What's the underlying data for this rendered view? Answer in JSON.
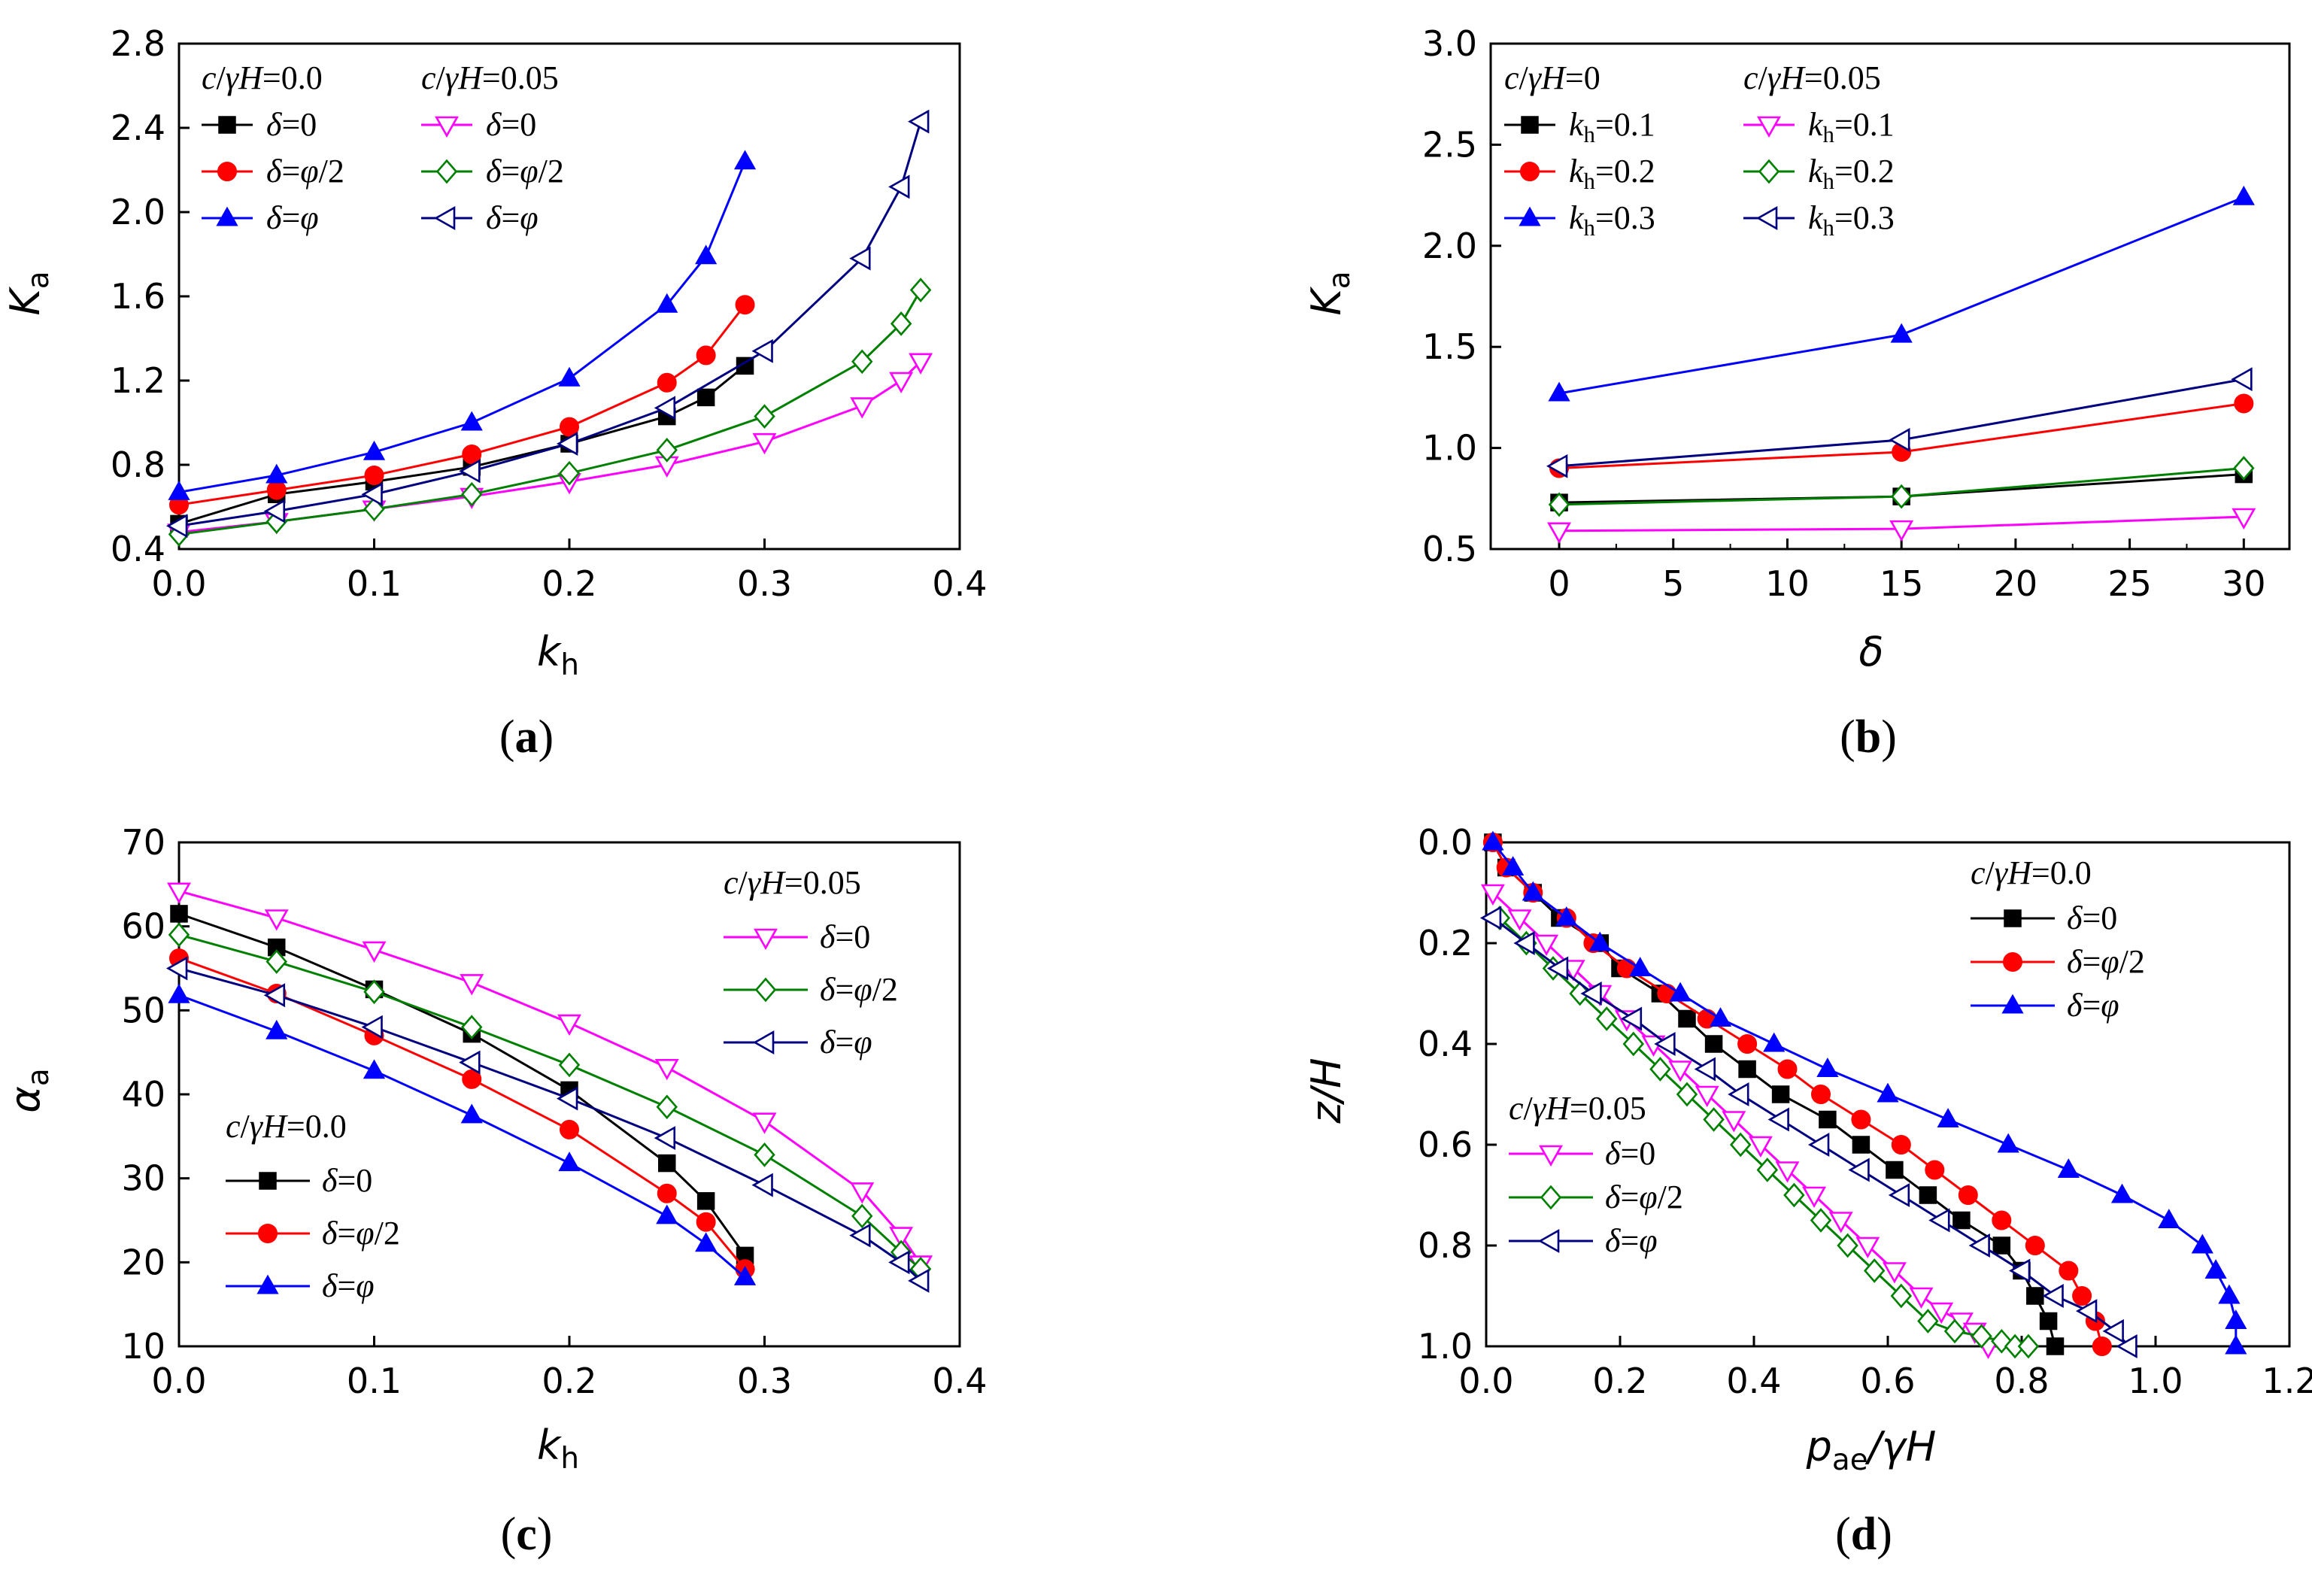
{
  "colors": {
    "black": "#000000",
    "red": "#ff0000",
    "blue": "#0000ff",
    "magenta": "#ff00ff",
    "green": "#008000",
    "navy": "#000080"
  },
  "chart_data": [
    {
      "panel": "a",
      "caption": "(a)",
      "type": "line",
      "xlabel": "k_h",
      "ylabel": "K_a",
      "xlim": [
        0,
        0.4
      ],
      "ylim": [
        0.4,
        2.8
      ],
      "xticks": [
        "0.0",
        "0.1",
        "0.2",
        "0.3",
        "0.4"
      ],
      "yticks": [
        "0.4",
        "0.8",
        "1.2",
        "1.6",
        "2.0",
        "2.4",
        "2.8"
      ],
      "legend_groups": [
        "c/γH=0.0",
        "c/γH=0.05"
      ],
      "legend_position": "top-left",
      "series": [
        {
          "name": "δ=0",
          "group": "c/γH=0.0",
          "color": "black",
          "marker": "square",
          "filled": true,
          "x": [
            0,
            0.05,
            0.1,
            0.15,
            0.2,
            0.25,
            0.27,
            0.29
          ],
          "y": [
            0.52,
            0.66,
            0.72,
            0.79,
            0.9,
            1.03,
            1.12,
            1.27
          ]
        },
        {
          "name": "δ=φ/2",
          "group": "c/γH=0.0",
          "color": "red",
          "marker": "circle",
          "filled": true,
          "x": [
            0,
            0.05,
            0.1,
            0.15,
            0.2,
            0.25,
            0.27,
            0.29
          ],
          "y": [
            0.61,
            0.68,
            0.75,
            0.85,
            0.98,
            1.19,
            1.32,
            1.56
          ]
        },
        {
          "name": "δ=φ",
          "group": "c/γH=0.0",
          "color": "blue",
          "marker": "triangle-up",
          "filled": true,
          "x": [
            0,
            0.05,
            0.1,
            0.15,
            0.2,
            0.25,
            0.27,
            0.29
          ],
          "y": [
            0.67,
            0.75,
            0.86,
            1.0,
            1.21,
            1.56,
            1.79,
            2.24
          ]
        },
        {
          "name": "δ=0",
          "group": "c/γH=0.05",
          "color": "magenta",
          "marker": "triangle-down",
          "filled": false,
          "x": [
            0,
            0.05,
            0.1,
            0.15,
            0.2,
            0.25,
            0.3,
            0.35,
            0.37,
            0.38
          ],
          "y": [
            0.48,
            0.53,
            0.59,
            0.65,
            0.72,
            0.8,
            0.91,
            1.08,
            1.2,
            1.29
          ]
        },
        {
          "name": "δ=φ/2",
          "group": "c/γH=0.05",
          "color": "green",
          "marker": "diamond",
          "filled": false,
          "x": [
            0,
            0.05,
            0.1,
            0.15,
            0.2,
            0.25,
            0.3,
            0.35,
            0.37,
            0.38
          ],
          "y": [
            0.47,
            0.53,
            0.59,
            0.66,
            0.76,
            0.87,
            1.03,
            1.29,
            1.47,
            1.63
          ]
        },
        {
          "name": "δ=φ",
          "group": "c/γH=0.05",
          "color": "navy",
          "marker": "triangle-left",
          "filled": false,
          "x": [
            0,
            0.05,
            0.1,
            0.15,
            0.2,
            0.25,
            0.3,
            0.35,
            0.37,
            0.38
          ],
          "y": [
            0.51,
            0.58,
            0.66,
            0.77,
            0.9,
            1.07,
            1.34,
            1.78,
            2.12,
            2.43
          ]
        }
      ]
    },
    {
      "panel": "b",
      "caption": "(b)",
      "type": "line",
      "xlabel": "δ",
      "ylabel": "K_a",
      "xlim": [
        -3,
        32
      ],
      "ylim": [
        0.5,
        3.0
      ],
      "xticks": [
        "0",
        "5",
        "10",
        "15",
        "20",
        "25",
        "30"
      ],
      "yticks": [
        "0.5",
        "1.0",
        "1.5",
        "2.0",
        "2.5",
        "3.0"
      ],
      "legend_groups": [
        "c/γH=0",
        "c/γH=0.05"
      ],
      "legend_position": "top-left",
      "series": [
        {
          "name": "kh=0.1",
          "group": "c/γH=0",
          "color": "black",
          "marker": "square",
          "filled": true,
          "x": [
            0,
            15,
            30
          ],
          "y": [
            0.73,
            0.76,
            0.87
          ]
        },
        {
          "name": "kh=0.2",
          "group": "c/γH=0",
          "color": "red",
          "marker": "circle",
          "filled": true,
          "x": [
            0,
            15,
            30
          ],
          "y": [
            0.9,
            0.98,
            1.22
          ]
        },
        {
          "name": "kh=0.3",
          "group": "c/γH=0",
          "color": "blue",
          "marker": "triangle-up",
          "filled": true,
          "x": [
            0,
            15,
            30
          ],
          "y": [
            1.27,
            1.56,
            2.24
          ]
        },
        {
          "name": "kh=0.1",
          "group": "c/γH=0.05",
          "color": "magenta",
          "marker": "triangle-down",
          "filled": false,
          "x": [
            0,
            15,
            30
          ],
          "y": [
            0.59,
            0.6,
            0.66
          ]
        },
        {
          "name": "kh=0.2",
          "group": "c/γH=0.05",
          "color": "green",
          "marker": "diamond",
          "filled": false,
          "x": [
            0,
            15,
            30
          ],
          "y": [
            0.72,
            0.76,
            0.9
          ]
        },
        {
          "name": "kh=0.3",
          "group": "c/γH=0.05",
          "color": "navy",
          "marker": "triangle-left",
          "filled": false,
          "x": [
            0,
            15,
            30
          ],
          "y": [
            0.91,
            1.04,
            1.34
          ]
        }
      ]
    },
    {
      "panel": "c",
      "caption": "(c)",
      "type": "line",
      "xlabel": "k_h",
      "ylabel": "α_a",
      "xlim": [
        0,
        0.4
      ],
      "ylim": [
        10,
        70
      ],
      "xticks": [
        "0.0",
        "0.1",
        "0.2",
        "0.3",
        "0.4"
      ],
      "yticks": [
        "10",
        "20",
        "30",
        "40",
        "50",
        "60",
        "70"
      ],
      "legend_groups": [
        "c/γH=0.05",
        "c/γH=0.0"
      ],
      "legend_position": "top-right and bottom-left",
      "series": [
        {
          "name": "δ=0",
          "group": "c/γH=0.0",
          "color": "black",
          "marker": "square",
          "filled": true,
          "x": [
            0,
            0.05,
            0.1,
            0.15,
            0.2,
            0.25,
            0.27,
            0.29
          ],
          "y": [
            61.5,
            57.5,
            52.5,
            47.2,
            40.5,
            31.8,
            27.3,
            20.8
          ]
        },
        {
          "name": "δ=φ/2",
          "group": "c/γH=0.0",
          "color": "red",
          "marker": "circle",
          "filled": true,
          "x": [
            0,
            0.05,
            0.1,
            0.15,
            0.2,
            0.25,
            0.27,
            0.29
          ],
          "y": [
            56.2,
            52.0,
            47.0,
            41.8,
            35.8,
            28.2,
            24.8,
            19.2
          ]
        },
        {
          "name": "δ=φ",
          "group": "c/γH=0.0",
          "color": "blue",
          "marker": "triangle-up",
          "filled": true,
          "x": [
            0,
            0.05,
            0.1,
            0.15,
            0.2,
            0.25,
            0.27,
            0.29
          ],
          "y": [
            51.8,
            47.5,
            42.8,
            37.5,
            31.8,
            25.5,
            22.2,
            18.2
          ]
        },
        {
          "name": "δ=0",
          "group": "c/γH=0.05",
          "color": "magenta",
          "marker": "triangle-down",
          "filled": false,
          "x": [
            0,
            0.05,
            0.1,
            0.15,
            0.2,
            0.25,
            0.3,
            0.35,
            0.37,
            0.38
          ],
          "y": [
            64.2,
            61.0,
            57.2,
            53.3,
            48.5,
            43.2,
            36.8,
            28.5,
            23.2,
            19.8
          ]
        },
        {
          "name": "δ=φ/2",
          "group": "c/γH=0.05",
          "color": "green",
          "marker": "diamond",
          "filled": false,
          "x": [
            0,
            0.05,
            0.1,
            0.15,
            0.2,
            0.25,
            0.3,
            0.35,
            0.37,
            0.38
          ],
          "y": [
            59.0,
            55.8,
            52.2,
            48.0,
            43.5,
            38.5,
            32.8,
            25.5,
            21.2,
            19.2
          ]
        },
        {
          "name": "δ=φ",
          "group": "c/γH=0.05",
          "color": "navy",
          "marker": "triangle-left",
          "filled": false,
          "x": [
            0,
            0.05,
            0.1,
            0.15,
            0.2,
            0.25,
            0.3,
            0.35,
            0.37,
            0.38
          ],
          "y": [
            55.0,
            51.8,
            48.0,
            43.8,
            39.5,
            34.8,
            29.2,
            23.2,
            20.0,
            17.8
          ]
        }
      ]
    },
    {
      "panel": "d",
      "caption": "(d)",
      "type": "line",
      "xlabel": "p_ae/γH",
      "ylabel": "z/H",
      "xlim": [
        0,
        1.2
      ],
      "ylim": [
        1.0,
        0.0
      ],
      "y_inverted": true,
      "xticks": [
        "0.0",
        "0.2",
        "0.4",
        "0.6",
        "0.8",
        "1.0",
        "1.2"
      ],
      "yticks": [
        "0.0",
        "0.2",
        "0.4",
        "0.6",
        "0.8",
        "1.0"
      ],
      "legend_groups": [
        "c/γH=0.0",
        "c/γH=0.05"
      ],
      "legend_position": "top-right and center-left",
      "series": [
        {
          "name": "δ=0",
          "group": "c/γH=0.0",
          "color": "black",
          "marker": "square",
          "filled": true,
          "x": [
            0.01,
            0.03,
            0.07,
            0.11,
            0.17,
            0.2,
            0.26,
            0.3,
            0.34,
            0.39,
            0.44,
            0.51,
            0.56,
            0.61,
            0.66,
            0.71,
            0.77,
            0.8,
            0.82,
            0.84,
            0.85
          ],
          "y": [
            0.0,
            0.05,
            0.1,
            0.15,
            0.2,
            0.25,
            0.3,
            0.35,
            0.4,
            0.45,
            0.5,
            0.55,
            0.6,
            0.65,
            0.7,
            0.75,
            0.8,
            0.85,
            0.9,
            0.95,
            1.0
          ]
        },
        {
          "name": "δ=φ/2",
          "group": "c/γH=0.0",
          "color": "red",
          "marker": "circle",
          "filled": true,
          "x": [
            0.01,
            0.03,
            0.07,
            0.12,
            0.16,
            0.21,
            0.27,
            0.33,
            0.39,
            0.45,
            0.5,
            0.56,
            0.62,
            0.67,
            0.72,
            0.77,
            0.82,
            0.87,
            0.89,
            0.91,
            0.92
          ],
          "y": [
            0.0,
            0.05,
            0.1,
            0.15,
            0.2,
            0.25,
            0.3,
            0.35,
            0.4,
            0.45,
            0.5,
            0.55,
            0.6,
            0.65,
            0.7,
            0.75,
            0.8,
            0.85,
            0.9,
            0.95,
            1.0
          ]
        },
        {
          "name": "δ=φ",
          "group": "c/γH=0.0",
          "color": "blue",
          "marker": "triangle-up",
          "filled": true,
          "x": [
            0.01,
            0.04,
            0.07,
            0.12,
            0.17,
            0.23,
            0.29,
            0.35,
            0.43,
            0.51,
            0.6,
            0.69,
            0.78,
            0.87,
            0.95,
            1.02,
            1.07,
            1.09,
            1.11,
            1.12,
            1.12
          ],
          "y": [
            0.0,
            0.05,
            0.1,
            0.15,
            0.2,
            0.25,
            0.3,
            0.35,
            0.4,
            0.45,
            0.5,
            0.55,
            0.6,
            0.65,
            0.7,
            0.75,
            0.8,
            0.85,
            0.9,
            0.95,
            1.0
          ]
        },
        {
          "name": "δ=0",
          "group": "c/γH=0.05",
          "color": "magenta",
          "marker": "triangle-down",
          "filled": false,
          "x": [
            0.01,
            0.05,
            0.09,
            0.13,
            0.17,
            0.21,
            0.25,
            0.29,
            0.33,
            0.37,
            0.41,
            0.45,
            0.49,
            0.53,
            0.57,
            0.61,
            0.65,
            0.68,
            0.71,
            0.73,
            0.75
          ],
          "y": [
            0.1,
            0.15,
            0.2,
            0.25,
            0.3,
            0.35,
            0.4,
            0.45,
            0.5,
            0.55,
            0.6,
            0.65,
            0.7,
            0.75,
            0.8,
            0.85,
            0.9,
            0.93,
            0.95,
            0.97,
            1.0
          ]
        },
        {
          "name": "δ=φ/2",
          "group": "c/γH=0.05",
          "color": "green",
          "marker": "diamond",
          "filled": false,
          "x": [
            0.02,
            0.06,
            0.1,
            0.14,
            0.18,
            0.22,
            0.26,
            0.3,
            0.34,
            0.38,
            0.42,
            0.46,
            0.5,
            0.54,
            0.58,
            0.62,
            0.66,
            0.7,
            0.74,
            0.77,
            0.79,
            0.81
          ],
          "y": [
            0.15,
            0.2,
            0.25,
            0.3,
            0.35,
            0.4,
            0.45,
            0.5,
            0.55,
            0.6,
            0.65,
            0.7,
            0.75,
            0.8,
            0.85,
            0.9,
            0.95,
            0.97,
            0.98,
            0.99,
            1.0,
            1.0
          ]
        },
        {
          "name": "δ=φ",
          "group": "c/γH=0.05",
          "color": "navy",
          "marker": "triangle-left",
          "filled": false,
          "x": [
            0.01,
            0.06,
            0.11,
            0.16,
            0.22,
            0.27,
            0.33,
            0.38,
            0.44,
            0.5,
            0.56,
            0.62,
            0.68,
            0.74,
            0.8,
            0.85,
            0.9,
            0.94,
            0.96
          ],
          "y": [
            0.15,
            0.2,
            0.25,
            0.3,
            0.35,
            0.4,
            0.45,
            0.5,
            0.55,
            0.6,
            0.65,
            0.7,
            0.75,
            0.8,
            0.85,
            0.9,
            0.93,
            0.97,
            1.0
          ]
        }
      ]
    }
  ]
}
